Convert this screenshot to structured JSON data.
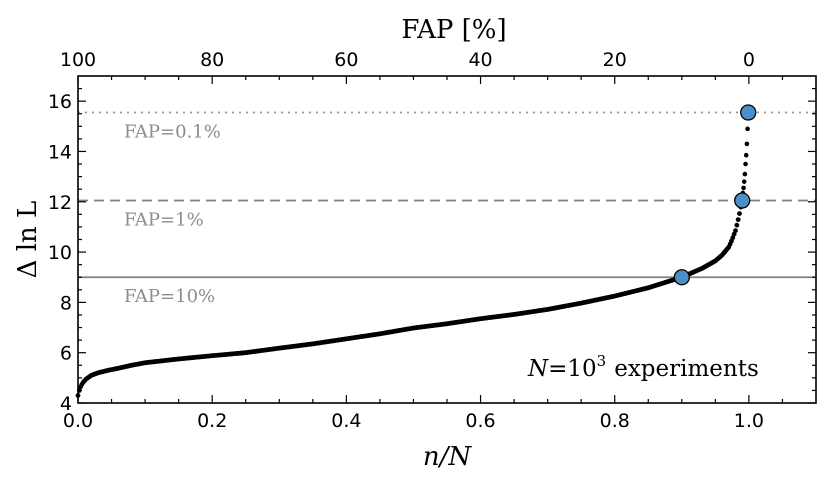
{
  "chart_data": {
    "type": "scatter",
    "xlabel": "n/N",
    "ylabel": "Δ ln L",
    "top_xlabel": "FAP [%]",
    "xlim": [
      0.0,
      1.1
    ],
    "ylim": [
      4,
      17
    ],
    "xticks": [
      "0.0",
      "0.2",
      "0.4",
      "0.6",
      "0.8",
      "1.0"
    ],
    "yticks": [
      "4",
      "6",
      "8",
      "10",
      "12",
      "14",
      "16"
    ],
    "top_xticks": [
      "100",
      "80",
      "60",
      "40",
      "20",
      "0"
    ],
    "grid": false,
    "annotation": {
      "N": "N",
      "eq": "=10",
      "exp": "3",
      "rest": "experiments"
    },
    "thresholds": [
      {
        "label": "FAP=0.1%",
        "y": 15.55,
        "style": "dotted",
        "color": "#999999"
      },
      {
        "label": "FAP=1%",
        "y": 12.05,
        "style": "dashed",
        "color": "#808080"
      },
      {
        "label": "FAP=10%",
        "y": 9.0,
        "style": "solid",
        "color": "#808080"
      }
    ],
    "highlight_points": [
      {
        "x": 0.9,
        "y": 9.0
      },
      {
        "x": 0.99,
        "y": 12.05
      },
      {
        "x": 0.999,
        "y": 15.55
      }
    ],
    "curve": [
      [
        0.0,
        4.3
      ],
      [
        0.003,
        4.6
      ],
      [
        0.007,
        4.8
      ],
      [
        0.012,
        4.95
      ],
      [
        0.02,
        5.1
      ],
      [
        0.03,
        5.2
      ],
      [
        0.045,
        5.3
      ],
      [
        0.06,
        5.38
      ],
      [
        0.08,
        5.5
      ],
      [
        0.1,
        5.6
      ],
      [
        0.15,
        5.75
      ],
      [
        0.2,
        5.88
      ],
      [
        0.25,
        6.0
      ],
      [
        0.3,
        6.18
      ],
      [
        0.35,
        6.35
      ],
      [
        0.4,
        6.55
      ],
      [
        0.45,
        6.75
      ],
      [
        0.5,
        6.98
      ],
      [
        0.55,
        7.15
      ],
      [
        0.6,
        7.35
      ],
      [
        0.65,
        7.52
      ],
      [
        0.7,
        7.72
      ],
      [
        0.75,
        7.97
      ],
      [
        0.8,
        8.25
      ],
      [
        0.85,
        8.58
      ],
      [
        0.9,
        9.0
      ],
      [
        0.93,
        9.35
      ],
      [
        0.95,
        9.65
      ],
      [
        0.96,
        9.88
      ],
      [
        0.97,
        10.2
      ],
      [
        0.975,
        10.5
      ],
      [
        0.98,
        10.85
      ],
      [
        0.985,
        11.4
      ],
      [
        0.99,
        12.05
      ]
    ],
    "tail_points": [
      {
        "x": 0.991,
        "y": 12.35
      },
      {
        "x": 0.992,
        "y": 12.55
      },
      {
        "x": 0.993,
        "y": 12.8
      },
      {
        "x": 0.994,
        "y": 13.1
      },
      {
        "x": 0.995,
        "y": 13.5
      },
      {
        "x": 0.996,
        "y": 13.85
      },
      {
        "x": 0.997,
        "y": 14.3
      },
      {
        "x": 0.998,
        "y": 14.9
      }
    ]
  }
}
